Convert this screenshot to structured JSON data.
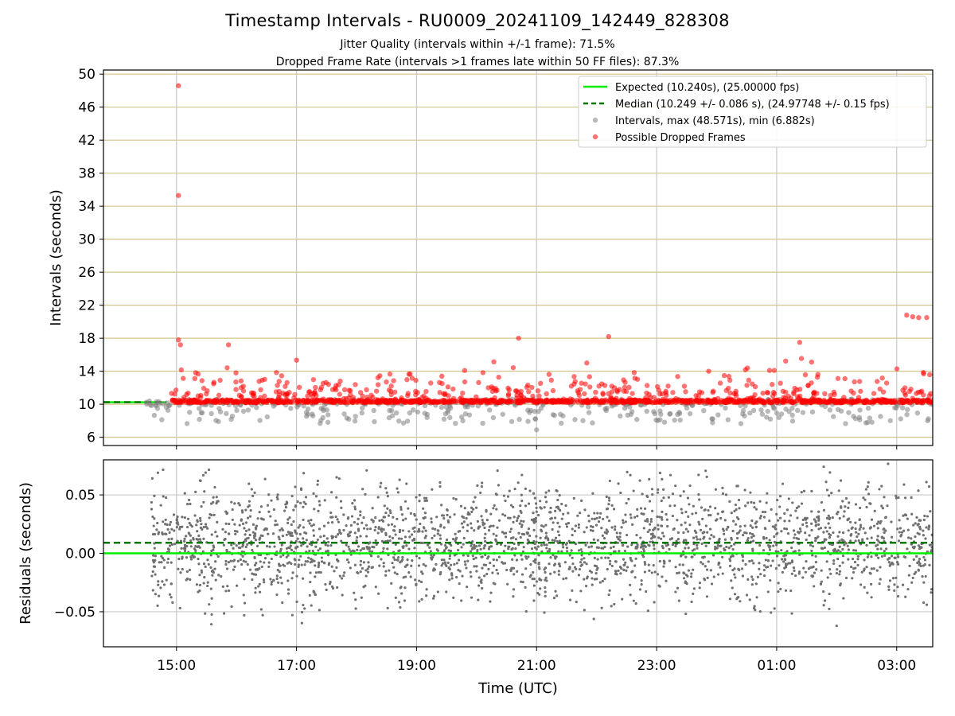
{
  "header": {
    "title": "Timestamp Intervals - RU0009_20241109_142449_828308",
    "subtitle1": "Jitter Quality (intervals within +/-1 frame): 71.5%",
    "subtitle2": "Dropped Frame Rate (intervals >1 frames late within 50 FF files): 87.3%"
  },
  "chart_data": [
    {
      "type": "scatter",
      "panel": "top",
      "ylabel": "Intervals (seconds)",
      "ylim": [
        5,
        50.5
      ],
      "yticks": [
        6,
        10,
        14,
        18,
        22,
        26,
        30,
        34,
        38,
        42,
        46,
        50
      ],
      "xticks": [
        "15:00",
        "17:00",
        "19:00",
        "21:00",
        "23:00",
        "01:00",
        "03:00"
      ],
      "xlim_hours_utc": [
        "13:47",
        "03:36"
      ],
      "grid": true,
      "legend_position": "top-right",
      "reference_lines": [
        {
          "name": "Expected (10.240s), (25.00000 fps)",
          "value": 10.24,
          "style": "solid",
          "color": "#00ee00"
        },
        {
          "name": "Median (10.249 +/- 0.086 s), (24.97748 +/- 0.15 fps)",
          "value": 10.249,
          "style": "dashed",
          "color": "#007700"
        }
      ],
      "series": [
        {
          "name": "Intervals, max (48.571s), min (6.882s)",
          "color": "#808080"
        },
        {
          "name": "Possible Dropped Frames",
          "color": "#ff0000",
          "points": [
            {
              "t": "15:02",
              "y": 48.6
            },
            {
              "t": "15:02",
              "y": 35.3
            },
            {
              "t": "15:02",
              "y": 17.8
            },
            {
              "t": "15:04",
              "y": 17.2
            },
            {
              "t": "15:52",
              "y": 17.2
            },
            {
              "t": "20:42",
              "y": 18.0
            },
            {
              "t": "22:12",
              "y": 18.2
            },
            {
              "t": "01:23",
              "y": 17.5
            },
            {
              "t": "03:10",
              "y": 20.8
            },
            {
              "t": "03:16",
              "y": 20.6
            },
            {
              "t": "03:22",
              "y": 20.5
            },
            {
              "t": "03:30",
              "y": 20.5
            }
          ]
        }
      ]
    },
    {
      "type": "scatter",
      "panel": "bottom",
      "ylabel": "Residuals (seconds)",
      "xlabel": "Time (UTC)",
      "ylim": [
        -0.08,
        0.08
      ],
      "yticks": [
        "0.05",
        "0.00",
        "−0.05"
      ],
      "reference_lines": [
        {
          "value": 0.0,
          "style": "solid",
          "color": "#00ee00"
        },
        {
          "value": 0.009,
          "style": "dashed",
          "color": "#007700"
        }
      ],
      "series": [
        {
          "name": "Residuals",
          "color": "#707070"
        }
      ]
    }
  ]
}
